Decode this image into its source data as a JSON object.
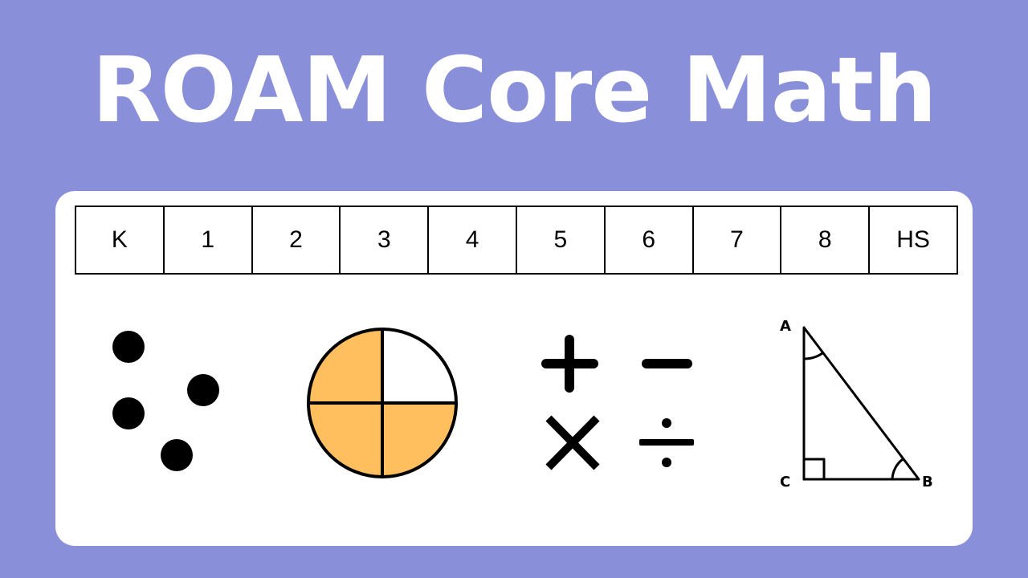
{
  "title": "ROAM Core Math",
  "grades": [
    "K",
    "1",
    "2",
    "3",
    "4",
    "5",
    "6",
    "7",
    "8",
    "HS"
  ],
  "icons": {
    "dots": "counting-dots-icon",
    "fraction": "three-quarters-circle-icon",
    "operations": [
      "plus-icon",
      "minus-icon",
      "times-icon",
      "divide-icon"
    ],
    "triangle": "right-triangle-icon"
  },
  "fraction": {
    "shaded_fraction": 0.75,
    "fill_color": "#ffbf5e"
  },
  "triangle": {
    "vertex_a": "A",
    "vertex_b": "B",
    "vertex_c": "C"
  },
  "colors": {
    "background": "#8990d9",
    "card": "#ffffff",
    "ink": "#000000"
  }
}
